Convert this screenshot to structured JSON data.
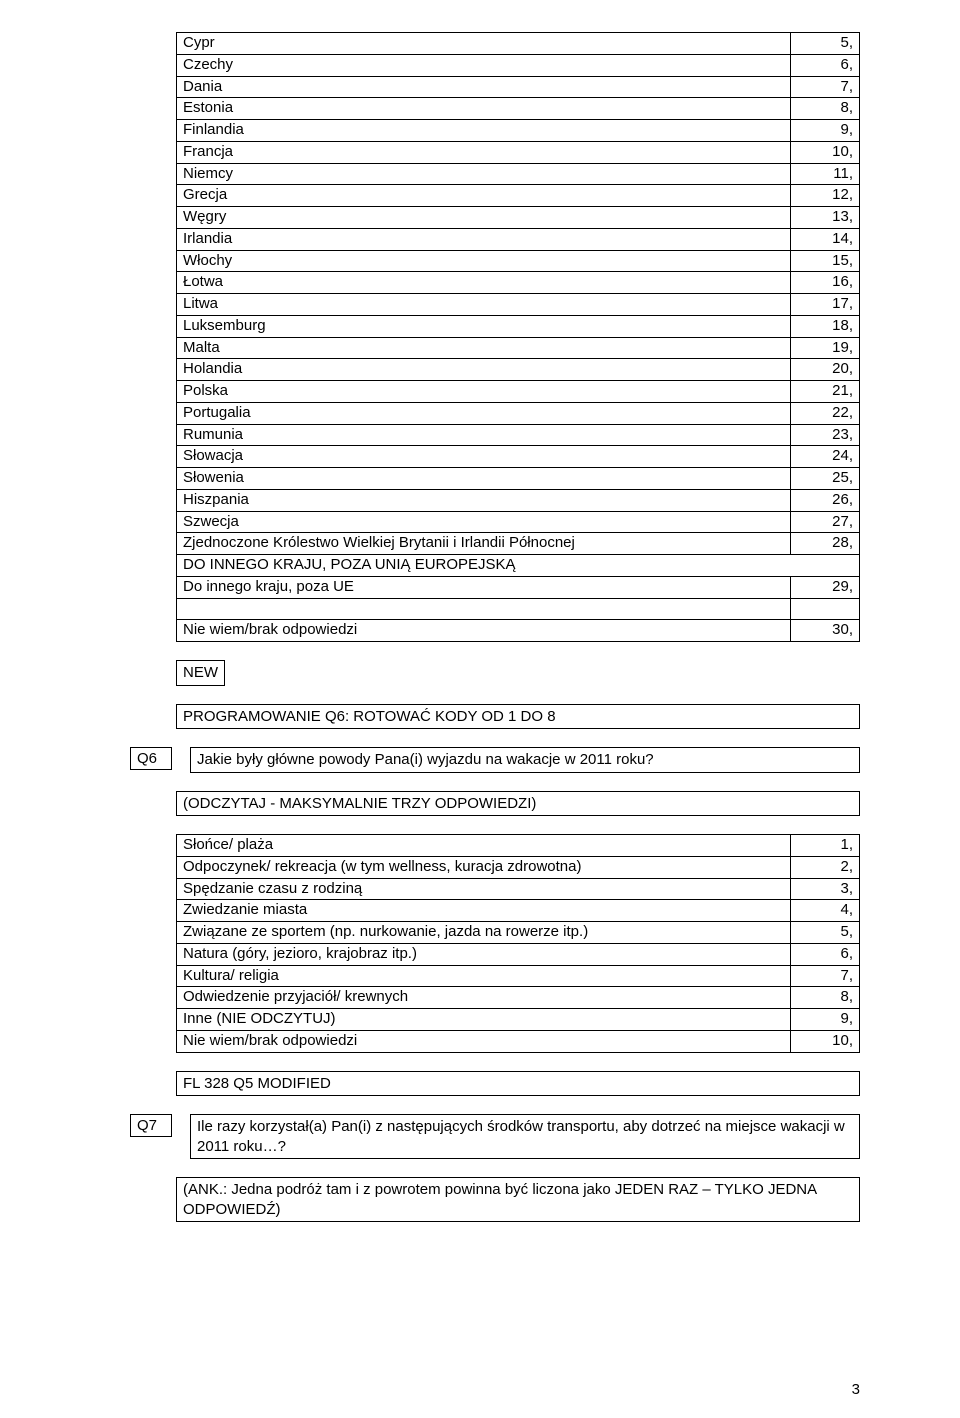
{
  "countries": {
    "rows": [
      {
        "label": "Cypr",
        "n": "5,"
      },
      {
        "label": "Czechy",
        "n": "6,"
      },
      {
        "label": "Dania",
        "n": "7,"
      },
      {
        "label": "Estonia",
        "n": "8,"
      },
      {
        "label": "Finlandia",
        "n": "9,"
      },
      {
        "label": "Francja",
        "n": "10,"
      },
      {
        "label": "Niemcy",
        "n": "11,"
      },
      {
        "label": "Grecja",
        "n": "12,"
      },
      {
        "label": "Węgry",
        "n": "13,"
      },
      {
        "label": "Irlandia",
        "n": "14,"
      },
      {
        "label": "Włochy",
        "n": "15,"
      },
      {
        "label": "Łotwa",
        "n": "16,"
      },
      {
        "label": "Litwa",
        "n": "17,"
      },
      {
        "label": "Luksemburg",
        "n": "18,"
      },
      {
        "label": "Malta",
        "n": "19,"
      },
      {
        "label": "Holandia",
        "n": "20,"
      },
      {
        "label": "Polska",
        "n": "21,"
      },
      {
        "label": "Portugalia",
        "n": "22,"
      },
      {
        "label": "Rumunia",
        "n": "23,"
      },
      {
        "label": "Słowacja",
        "n": "24,"
      },
      {
        "label": "Słowenia",
        "n": "25,"
      },
      {
        "label": "Hiszpania",
        "n": "26,"
      },
      {
        "label": "Szwecja",
        "n": "27,"
      },
      {
        "label": "Zjednoczone Królestwo Wielkiej Brytanii i Irlandii Północnej",
        "n": "28,"
      }
    ],
    "other_header": "DO INNEGO KRAJU, POZA UNIĄ EUROPEJSKĄ",
    "other_row": {
      "label": "Do innego kraju, poza UE",
      "n": "29,"
    },
    "dk_row": {
      "label": "Nie wiem/brak odpowiedzi",
      "n": "30,"
    }
  },
  "new_tag": "NEW",
  "q6": {
    "prog": "PROGRAMOWANIE Q6: ROTOWAĆ KODY OD 1 DO 8",
    "id": "Q6",
    "text": "Jakie były główne powody Pana(i) wyjazdu na wakacje w 2011 roku?",
    "instr": "(ODCZYTAJ - MAKSYMALNIE TRZY ODPOWIEDZI)",
    "rows": [
      {
        "label": "Słońce/ plaża",
        "n": "1,"
      },
      {
        "label": "Odpoczynek/ rekreacja (w tym wellness, kuracja zdrowotna)",
        "n": "2,"
      },
      {
        "label": "Spędzanie czasu z rodziną",
        "n": "3,"
      },
      {
        "label": "Zwiedzanie miasta",
        "n": "4,"
      },
      {
        "label": "Związane ze sportem (np. nurkowanie, jazda na rowerze itp.)",
        "n": "5,"
      },
      {
        "label": "Natura (góry, jezioro, krajobraz itp.)",
        "n": "6,"
      },
      {
        "label": "Kultura/ religia",
        "n": "7,"
      },
      {
        "label": "Odwiedzenie przyjaciół/ krewnych",
        "n": "8,"
      },
      {
        "label": "Inne (NIE ODCZYTUJ)",
        "n": "9,"
      },
      {
        "label": "Nie wiem/brak odpowiedzi",
        "n": "10,"
      }
    ],
    "source": "FL 328 Q5 MODIFIED"
  },
  "q7": {
    "id": "Q7",
    "text": "Ile razy korzystał(a) Pan(i) z następujących środków transportu, aby dotrzeć na miejsce wakacji w 2011 roku…?",
    "instr": "(ANK.: Jedna podróż tam i z powrotem powinna być liczona jako JEDEN RAZ – TYLKO JEDNA ODPOWIEDŹ)"
  },
  "pagenum": "3"
}
